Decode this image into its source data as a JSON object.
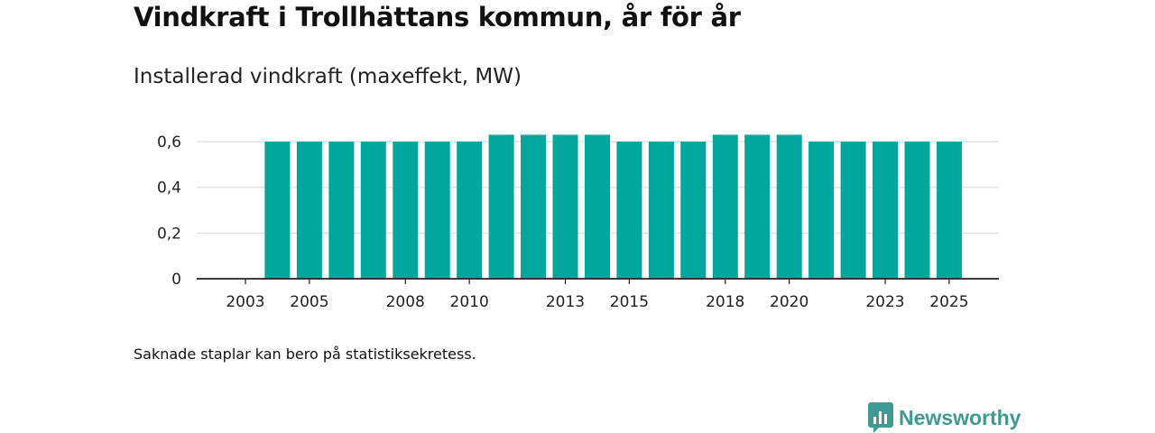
{
  "title": "Vindkraft i Trollhättans kommun, år för år",
  "subtitle": "Installerad vindkraft (maxeffekt, MW)",
  "note": "Saknade staplar kan bero på statistiksekretess.",
  "brand": {
    "name": "Newsworthy",
    "icon": "newsworthy-logo-icon"
  },
  "colors": {
    "bar": "#00a79d",
    "grid": "#dddddd",
    "axis": "#222222"
  },
  "chart_data": {
    "type": "bar",
    "title": "Vindkraft i Trollhättans kommun, år för år",
    "ylabel": "Installerad vindkraft (maxeffekt, MW)",
    "xlabel": "",
    "ylim": [
      0,
      0.7
    ],
    "yticks": [
      0,
      0.2,
      0.4,
      0.6
    ],
    "ytick_labels": [
      "0",
      "0,2",
      "0,4",
      "0,6"
    ],
    "grid": true,
    "categories": [
      2003,
      2004,
      2005,
      2006,
      2007,
      2008,
      2009,
      2010,
      2011,
      2012,
      2013,
      2014,
      2015,
      2016,
      2017,
      2018,
      2019,
      2020,
      2021,
      2022,
      2023,
      2024,
      2025
    ],
    "values": [
      null,
      0.6,
      0.6,
      0.6,
      0.6,
      0.6,
      0.6,
      0.6,
      0.63,
      0.63,
      0.63,
      0.63,
      0.6,
      0.6,
      0.6,
      0.63,
      0.63,
      0.63,
      0.6,
      0.6,
      0.6,
      0.6,
      0.6
    ],
    "xtick_labels": [
      "2003",
      "2005",
      "2008",
      "2010",
      "2013",
      "2015",
      "2018",
      "2020",
      "2023",
      "2025"
    ]
  }
}
